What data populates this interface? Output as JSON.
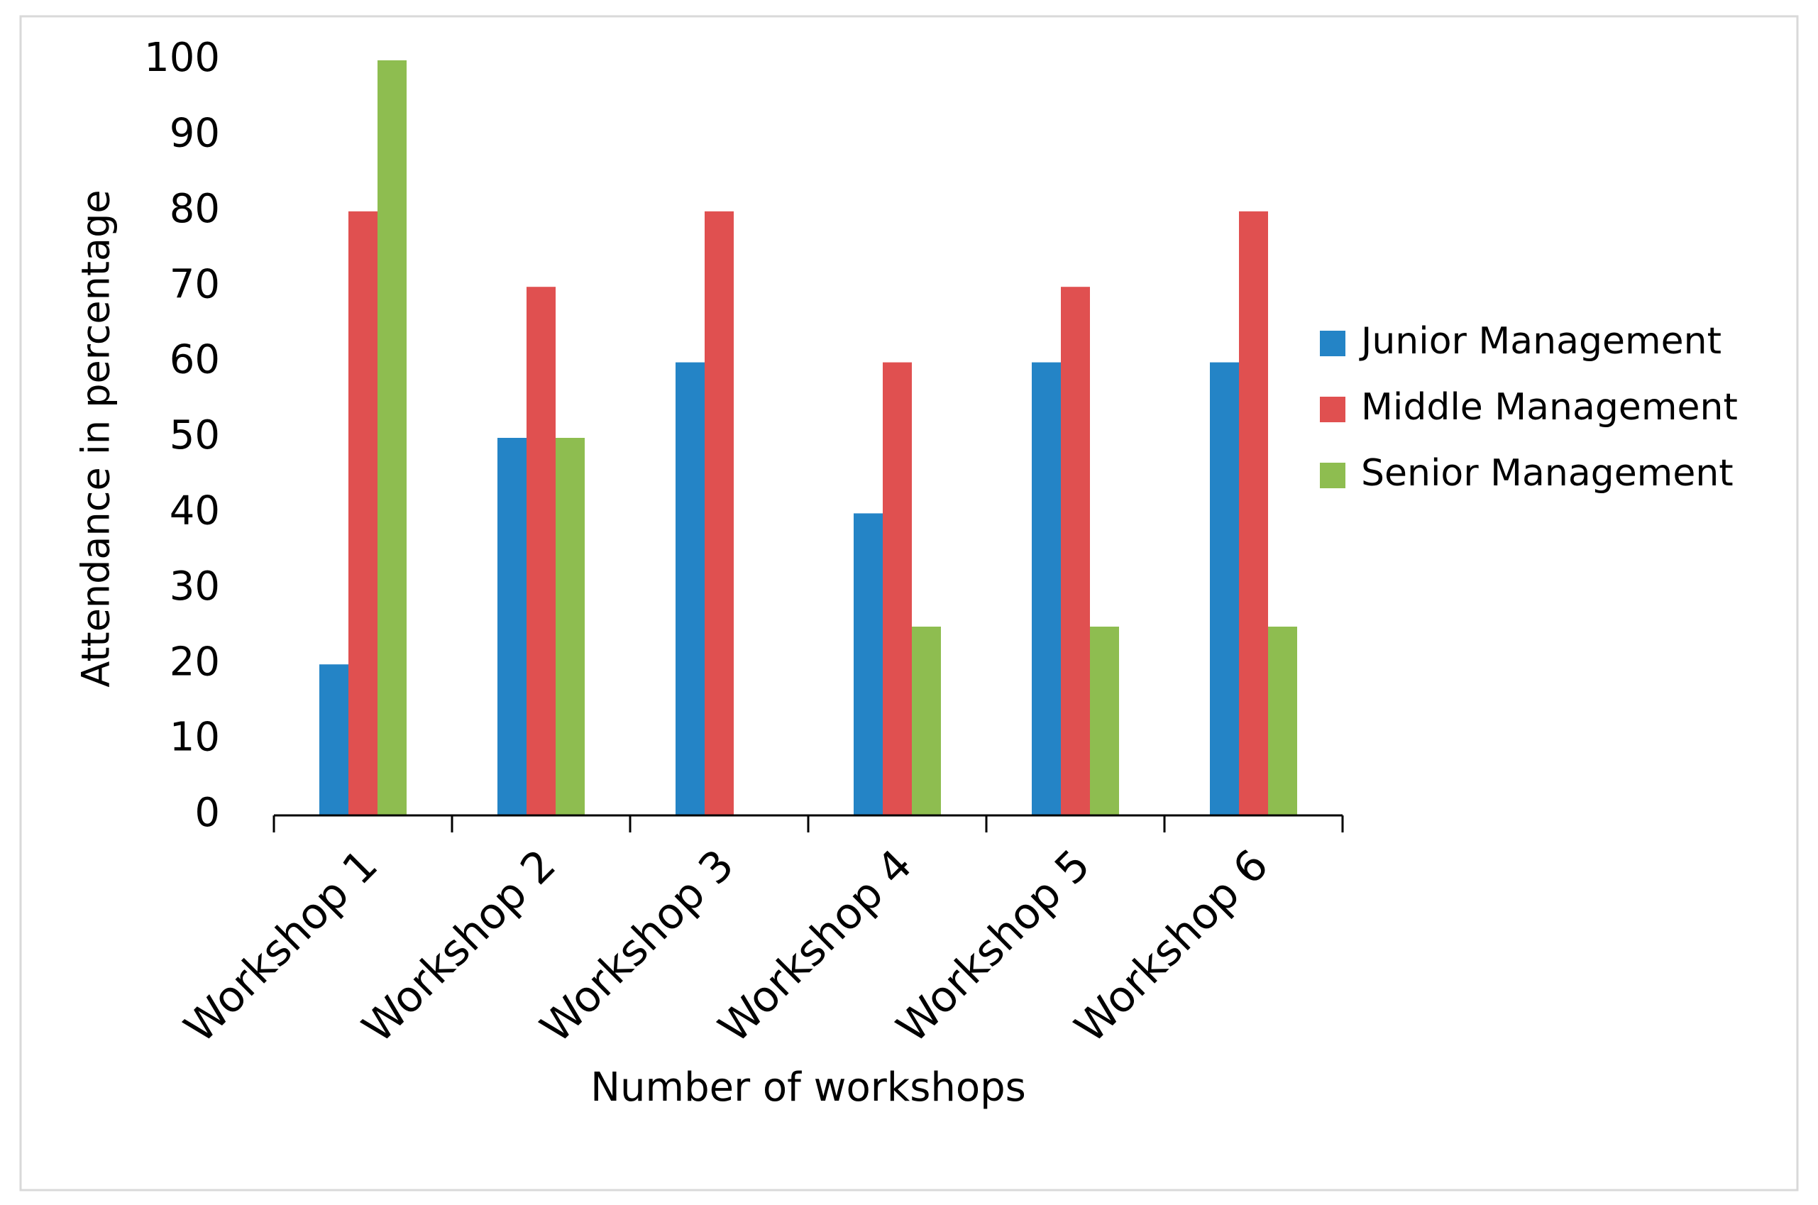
{
  "chart_data": {
    "type": "bar",
    "x_label": "Number of workshops",
    "y_label": "Attendance in percentage",
    "categories": [
      "Workshop 1",
      "Workshop 2",
      "Workshop 3",
      "Workshop 4",
      "Workshop 5",
      "Workshop 6"
    ],
    "series": [
      {
        "name": "Junior Management",
        "color": "#2484c6",
        "values": [
          20,
          50,
          60,
          40,
          60,
          60
        ]
      },
      {
        "name": "Middle Management",
        "color": "#e05050",
        "values": [
          80,
          70,
          80,
          60,
          70,
          80
        ]
      },
      {
        "name": "Senior Management",
        "color": "#8ebd50",
        "values": [
          100,
          50,
          0,
          25,
          25,
          25
        ]
      }
    ],
    "ylim": [
      0,
      100
    ],
    "yticks": [
      0,
      10,
      20,
      30,
      40,
      50,
      60,
      70,
      80,
      90,
      100
    ],
    "grid": false,
    "legend": "right"
  }
}
